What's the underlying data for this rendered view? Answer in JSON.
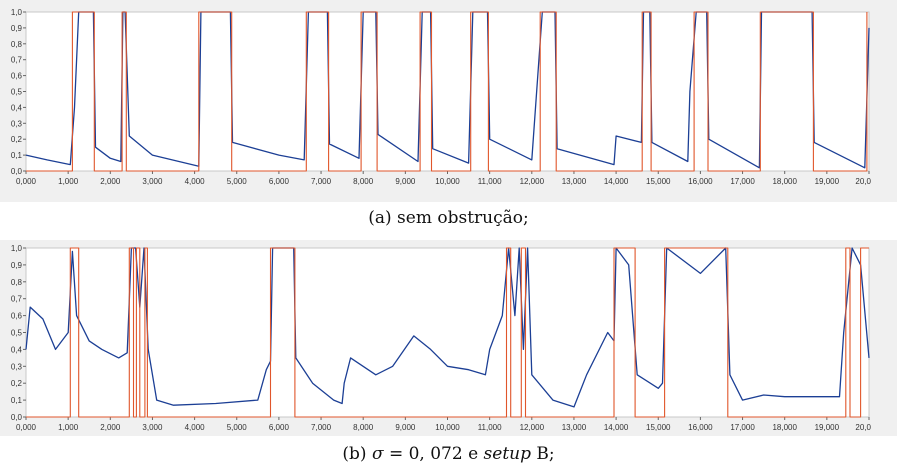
{
  "colors": {
    "blue": "#1c3f95",
    "red": "#e0562b",
    "frame": "#c8c8c8",
    "plot_bg": "#ffffff",
    "outer_bg": "#f0f0f0"
  },
  "captions": {
    "a": "(a) sem obstrução;",
    "b_prefix": "(b) ",
    "b_sigma": "σ",
    "b_eq": " = 0, 072 e ",
    "b_setup": "setup",
    "b_suffix": " B;"
  },
  "chart_data": [
    {
      "type": "line",
      "xlim": [
        0,
        20
      ],
      "ylim": [
        0,
        1
      ],
      "x_tick_labels": [
        "0,000",
        "1,000",
        "2,000",
        "3,000",
        "4,000",
        "5,000",
        "6,000",
        "7,000",
        "8,000",
        "9,000",
        "10,000",
        "11,000",
        "12,000",
        "13,000",
        "14,000",
        "15,000",
        "16,000",
        "17,000",
        "18,000",
        "19,000",
        "20,0"
      ],
      "y_tick_labels": [
        "0,0",
        "0,1",
        "0,2",
        "0,3",
        "0,4",
        "0,5",
        "0,6",
        "0,7",
        "0,8",
        "0,9",
        "1,0"
      ],
      "series": [
        {
          "color": "blue",
          "points": [
            [
              0,
              0.1
            ],
            [
              0.5,
              0.07
            ],
            [
              1.05,
              0.04
            ],
            [
              1.15,
              0.4
            ],
            [
              1.25,
              1.0
            ],
            [
              1.6,
              1.0
            ],
            [
              1.65,
              0.15
            ],
            [
              2.0,
              0.08
            ],
            [
              2.25,
              0.06
            ],
            [
              2.3,
              1.0
            ],
            [
              2.35,
              1.0
            ],
            [
              2.45,
              0.22
            ],
            [
              3.0,
              0.1
            ],
            [
              4.1,
              0.03
            ],
            [
              4.15,
              1.0
            ],
            [
              4.85,
              1.0
            ],
            [
              4.9,
              0.18
            ],
            [
              6.0,
              0.1
            ],
            [
              6.6,
              0.07
            ],
            [
              6.7,
              1.0
            ],
            [
              7.15,
              1.0
            ],
            [
              7.2,
              0.17
            ],
            [
              7.9,
              0.08
            ],
            [
              8.0,
              1.0
            ],
            [
              8.3,
              1.0
            ],
            [
              8.35,
              0.23
            ],
            [
              9.3,
              0.06
            ],
            [
              9.4,
              1.0
            ],
            [
              9.6,
              1.0
            ],
            [
              9.65,
              0.14
            ],
            [
              10.5,
              0.05
            ],
            [
              10.6,
              1.0
            ],
            [
              10.95,
              1.0
            ],
            [
              11.0,
              0.2
            ],
            [
              12.0,
              0.07
            ],
            [
              12.25,
              1.0
            ],
            [
              12.55,
              1.0
            ],
            [
              12.6,
              0.14
            ],
            [
              13.95,
              0.04
            ],
            [
              14.0,
              0.22
            ],
            [
              14.6,
              0.18
            ],
            [
              14.65,
              1.0
            ],
            [
              14.8,
              1.0
            ],
            [
              14.85,
              0.18
            ],
            [
              15.7,
              0.06
            ],
            [
              15.75,
              0.5
            ],
            [
              15.9,
              1.0
            ],
            [
              16.15,
              1.0
            ],
            [
              16.2,
              0.2
            ],
            [
              17.4,
              0.02
            ],
            [
              17.45,
              1.0
            ],
            [
              18.65,
              1.0
            ],
            [
              18.7,
              0.18
            ],
            [
              19.9,
              0.02
            ],
            [
              20.0,
              0.9
            ]
          ]
        },
        {
          "color": "red",
          "points": [
            [
              0,
              0
            ],
            [
              1.1,
              0
            ],
            [
              1.1,
              1
            ],
            [
              1.62,
              1
            ],
            [
              1.62,
              0
            ],
            [
              2.28,
              0
            ],
            [
              2.28,
              1
            ],
            [
              2.38,
              1
            ],
            [
              2.38,
              0
            ],
            [
              4.1,
              0
            ],
            [
              4.1,
              1
            ],
            [
              4.88,
              1
            ],
            [
              4.88,
              0
            ],
            [
              6.65,
              0
            ],
            [
              6.65,
              1
            ],
            [
              7.18,
              1
            ],
            [
              7.18,
              0
            ],
            [
              7.95,
              0
            ],
            [
              7.95,
              1
            ],
            [
              8.33,
              1
            ],
            [
              8.33,
              0
            ],
            [
              9.35,
              0
            ],
            [
              9.35,
              1
            ],
            [
              9.62,
              1
            ],
            [
              9.62,
              0
            ],
            [
              10.55,
              0
            ],
            [
              10.55,
              1
            ],
            [
              10.97,
              1
            ],
            [
              10.97,
              0
            ],
            [
              12.2,
              0
            ],
            [
              12.2,
              1
            ],
            [
              12.58,
              1
            ],
            [
              12.58,
              0
            ],
            [
              14.62,
              0
            ],
            [
              14.62,
              1
            ],
            [
              14.83,
              1
            ],
            [
              14.83,
              0
            ],
            [
              15.85,
              0
            ],
            [
              15.85,
              1
            ],
            [
              16.18,
              1
            ],
            [
              16.18,
              0
            ],
            [
              17.42,
              0
            ],
            [
              17.42,
              1
            ],
            [
              18.68,
              1
            ],
            [
              18.68,
              0
            ],
            [
              19.95,
              0
            ],
            [
              19.95,
              1
            ]
          ]
        }
      ]
    },
    {
      "type": "line",
      "xlim": [
        0,
        20
      ],
      "ylim": [
        0,
        1
      ],
      "x_tick_labels": [
        "0,000",
        "1,000",
        "2,000",
        "3,000",
        "4,000",
        "5,000",
        "6,000",
        "7,000",
        "8,000",
        "9,000",
        "10,000",
        "11,000",
        "12,000",
        "13,000",
        "14,000",
        "15,000",
        "16,000",
        "17,000",
        "18,000",
        "19,000",
        "20,0"
      ],
      "y_tick_labels": [
        "0,0",
        "0,1",
        "0,2",
        "0,3",
        "0,4",
        "0,5",
        "0,6",
        "0,7",
        "0,8",
        "0,9",
        "1,0"
      ],
      "series": [
        {
          "color": "blue",
          "points": [
            [
              0,
              0.4
            ],
            [
              0.1,
              0.65
            ],
            [
              0.4,
              0.58
            ],
            [
              0.7,
              0.4
            ],
            [
              1.0,
              0.5
            ],
            [
              1.1,
              0.98
            ],
            [
              1.2,
              0.6
            ],
            [
              1.5,
              0.45
            ],
            [
              1.8,
              0.4
            ],
            [
              2.2,
              0.35
            ],
            [
              2.4,
              0.38
            ],
            [
              2.5,
              1.0
            ],
            [
              2.6,
              1.0
            ],
            [
              2.7,
              0.65
            ],
            [
              2.8,
              1.0
            ],
            [
              2.9,
              0.4
            ],
            [
              3.1,
              0.1
            ],
            [
              3.5,
              0.07
            ],
            [
              4.5,
              0.08
            ],
            [
              5.5,
              0.1
            ],
            [
              5.7,
              0.28
            ],
            [
              5.8,
              0.33
            ],
            [
              5.85,
              1.0
            ],
            [
              6.35,
              1.0
            ],
            [
              6.4,
              0.35
            ],
            [
              6.8,
              0.2
            ],
            [
              7.3,
              0.1
            ],
            [
              7.5,
              0.08
            ],
            [
              7.55,
              0.2
            ],
            [
              7.7,
              0.35
            ],
            [
              8.3,
              0.25
            ],
            [
              8.7,
              0.3
            ],
            [
              9.2,
              0.48
            ],
            [
              9.6,
              0.4
            ],
            [
              10.0,
              0.3
            ],
            [
              10.5,
              0.28
            ],
            [
              10.9,
              0.25
            ],
            [
              11.0,
              0.4
            ],
            [
              11.3,
              0.6
            ],
            [
              11.45,
              1.0
            ],
            [
              11.6,
              0.6
            ],
            [
              11.7,
              1.0
            ],
            [
              11.8,
              0.4
            ],
            [
              11.9,
              1.0
            ],
            [
              12.0,
              0.25
            ],
            [
              12.5,
              0.1
            ],
            [
              13.0,
              0.06
            ],
            [
              13.3,
              0.25
            ],
            [
              13.8,
              0.5
            ],
            [
              13.95,
              0.45
            ],
            [
              14.0,
              1.0
            ],
            [
              14.3,
              0.9
            ],
            [
              14.5,
              0.25
            ],
            [
              15.0,
              0.17
            ],
            [
              15.1,
              0.2
            ],
            [
              15.2,
              1.0
            ],
            [
              16.0,
              0.85
            ],
            [
              16.6,
              1.0
            ],
            [
              16.7,
              0.25
            ],
            [
              17.0,
              0.1
            ],
            [
              17.5,
              0.13
            ],
            [
              18.0,
              0.12
            ],
            [
              18.5,
              0.12
            ],
            [
              19.0,
              0.12
            ],
            [
              19.3,
              0.12
            ],
            [
              19.4,
              0.5
            ],
            [
              19.6,
              1.0
            ],
            [
              19.8,
              0.9
            ],
            [
              20.0,
              0.35
            ]
          ]
        },
        {
          "color": "red",
          "points": [
            [
              0,
              0
            ],
            [
              1.05,
              0
            ],
            [
              1.05,
              1
            ],
            [
              1.25,
              1
            ],
            [
              1.25,
              0
            ],
            [
              2.45,
              0
            ],
            [
              2.45,
              1
            ],
            [
              2.55,
              1
            ],
            [
              2.55,
              0
            ],
            [
              2.62,
              0
            ],
            [
              2.62,
              1
            ],
            [
              2.7,
              1
            ],
            [
              2.7,
              0
            ],
            [
              2.82,
              0
            ],
            [
              2.82,
              1
            ],
            [
              2.88,
              1
            ],
            [
              2.88,
              0
            ],
            [
              5.8,
              0
            ],
            [
              5.8,
              1
            ],
            [
              6.38,
              1
            ],
            [
              6.38,
              0
            ],
            [
              11.4,
              0
            ],
            [
              11.4,
              1
            ],
            [
              11.5,
              1
            ],
            [
              11.5,
              0
            ],
            [
              11.75,
              0
            ],
            [
              11.75,
              1
            ],
            [
              11.85,
              1
            ],
            [
              11.85,
              0
            ],
            [
              13.95,
              0
            ],
            [
              13.95,
              1
            ],
            [
              14.45,
              1
            ],
            [
              14.45,
              0
            ],
            [
              15.15,
              0
            ],
            [
              15.15,
              1
            ],
            [
              16.65,
              1
            ],
            [
              16.65,
              0
            ],
            [
              19.45,
              0
            ],
            [
              19.45,
              1
            ],
            [
              19.55,
              1
            ],
            [
              19.55,
              0
            ],
            [
              19.8,
              0
            ],
            [
              19.8,
              1
            ],
            [
              20.0,
              1
            ]
          ]
        }
      ]
    }
  ]
}
